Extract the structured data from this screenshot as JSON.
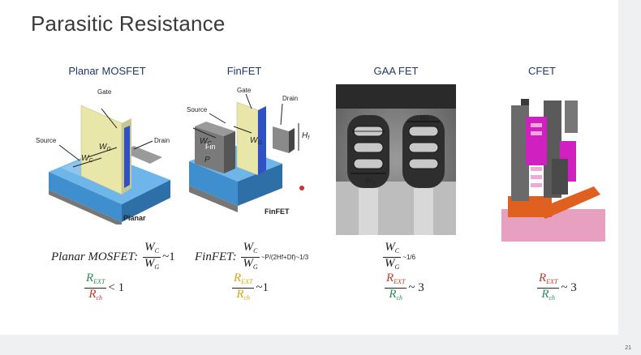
{
  "slide": {
    "title": "Parasitic Resistance",
    "page_number": "21"
  },
  "columns": [
    {
      "title": "Planar MOSFET",
      "figure_labels": {
        "gate": "Gate",
        "source": "Source",
        "drain": "Drain",
        "wg": "W",
        "wg_sub": "G",
        "wc": "W",
        "wc_sub": "C",
        "caption": "Planar"
      },
      "formula": {
        "prefix": "Planar MOSFET:",
        "num": "W",
        "num_sub": "C",
        "den": "W",
        "den_sub": "G",
        "suffix": "~1"
      },
      "ratio": {
        "num": "R",
        "num_sub": "EXT",
        "den": "R",
        "den_sub": "ch",
        "suffix": "< 1"
      }
    },
    {
      "title": "FinFET",
      "figure_labels": {
        "gate": "Gate",
        "source": "Source",
        "drain": "Drain",
        "fin": "Fin",
        "wc": "W",
        "wc_sub": "C",
        "wg": "W",
        "wg_sub": "G",
        "p": "P",
        "hf": "H",
        "hf_sub": "f",
        "caption": "FinFET"
      },
      "formula": {
        "prefix": "FinFET:",
        "num": "W",
        "num_sub": "C",
        "den": "W",
        "den_sub": "G",
        "suffix": "~P/(2Hf+Df)~1/3"
      },
      "ratio": {
        "num": "R",
        "num_sub": "EXT",
        "den": "R",
        "den_sub": "ch",
        "suffix": "~1"
      }
    },
    {
      "title": "GAA FET",
      "figure_labels": {
        "wc": "W",
        "wc_sub": "C",
        "wg": "W",
        "wg_sub": "G"
      },
      "formula": {
        "num": "W",
        "num_sub": "C",
        "den": "W",
        "den_sub": "G",
        "suffix": "~1/6"
      },
      "ratio": {
        "num": "R",
        "num_sub": "EXT",
        "den": "R",
        "den_sub": "ch",
        "suffix": "~ 3"
      }
    },
    {
      "title": "CFET",
      "ratio": {
        "num": "R",
        "num_sub": "EXT",
        "den": "R",
        "den_sub": "ch",
        "suffix": "~ 3"
      }
    }
  ],
  "colors": {
    "title": "#3a3a3a",
    "column_title": "#1f3a6a",
    "rext_yellow": "#d9a70b",
    "rext_red": "#c0392b",
    "rch_green": "#2e8b57",
    "substrate_blue": "#4aa3e0",
    "gate_yellow": "#e8e6a8",
    "cfet_pink": "#e8a0c0",
    "cfet_magenta": "#d020c0",
    "cfet_orange": "#e06020"
  }
}
